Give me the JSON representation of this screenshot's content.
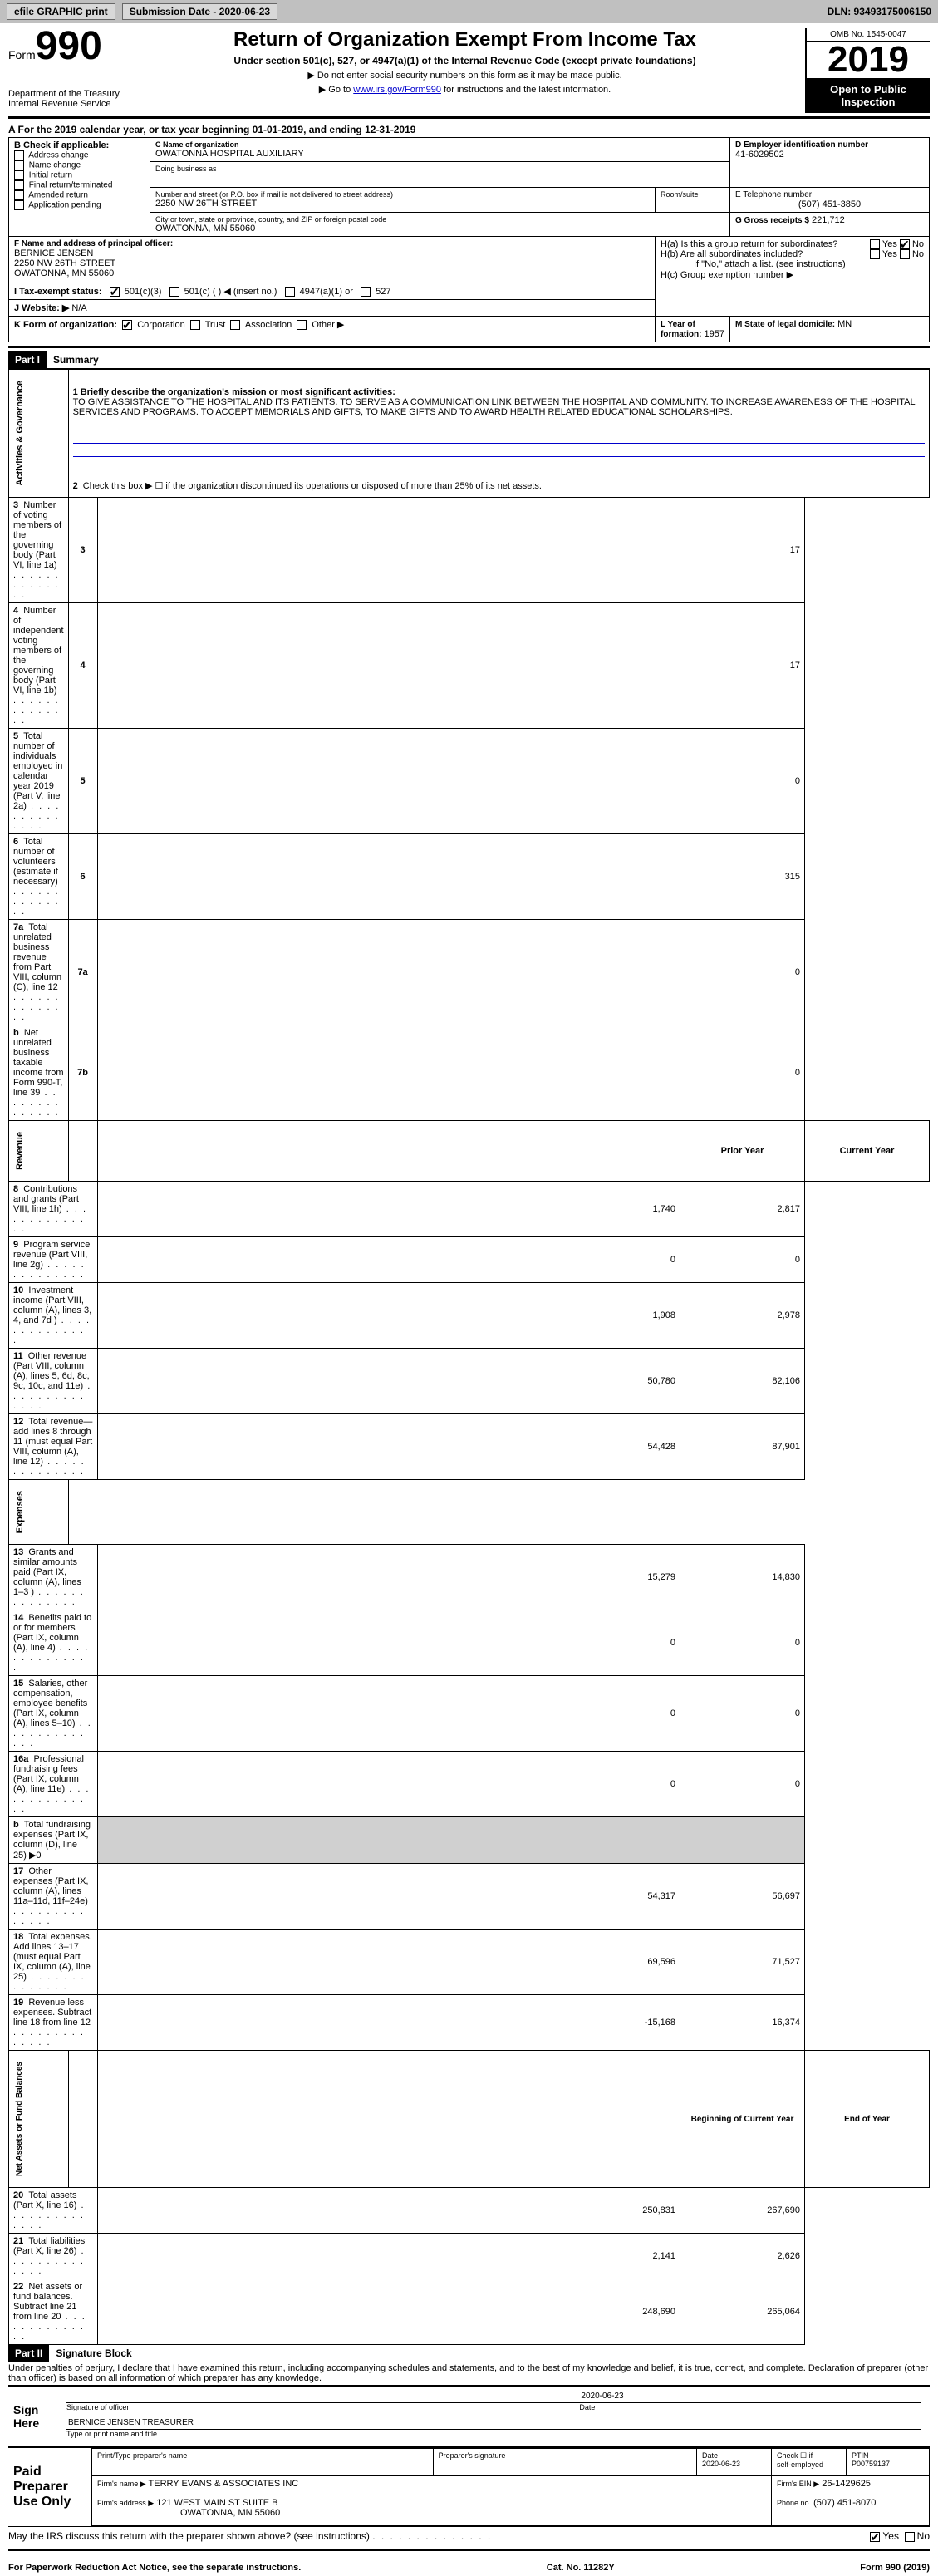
{
  "header": {
    "efile": "efile GRAPHIC print",
    "submission": "Submission Date - 2020-06-23",
    "dln": "DLN: 93493175006150"
  },
  "form": {
    "prefix": "Form",
    "number": "990",
    "dept": "Department of the Treasury",
    "irs": "Internal Revenue Service"
  },
  "title": {
    "main": "Return of Organization Exempt From Income Tax",
    "sub": "Under section 501(c), 527, or 4947(a)(1) of the Internal Revenue Code (except private foundations)",
    "note1": "▶ Do not enter social security numbers on this form as it may be made public.",
    "note2_prefix": "▶ Go to ",
    "note2_link": "www.irs.gov/Form990",
    "note2_suffix": " for instructions and the latest information."
  },
  "rightbox": {
    "omb": "OMB No. 1545-0047",
    "year": "2019",
    "inspect": "Open to Public Inspection"
  },
  "period": {
    "prefix": "A For the 2019 calendar year, or tax year beginning ",
    "start": "01-01-2019",
    "mid": ", and ending ",
    "end": "12-31-2019"
  },
  "boxB": {
    "label": "B Check if applicable:",
    "opts": [
      "Address change",
      "Name change",
      "Initial return",
      "Final return/terminated",
      "Amended return",
      "Application pending"
    ]
  },
  "boxC": {
    "label": "C Name of organization",
    "name": "OWATONNA HOSPITAL AUXILIARY",
    "dba": "Doing business as",
    "addr_label": "Number and street (or P.O. box if mail is not delivered to street address)",
    "addr": "2250 NW 26TH STREET",
    "room": "Room/suite",
    "city_label": "City or town, state or province, country, and ZIP or foreign postal code",
    "city": "OWATONNA, MN  55060"
  },
  "boxD": {
    "label": "D Employer identification number",
    "value": "41-6029502"
  },
  "boxE": {
    "label": "E Telephone number",
    "value": "(507) 451-3850"
  },
  "boxG": {
    "label": "G Gross receipts $",
    "value": "221,712"
  },
  "boxF": {
    "label": "F Name and address of principal officer:",
    "name": "BERNICE JENSEN",
    "addr": "2250 NW 26TH STREET",
    "city": "OWATONNA, MN  55060"
  },
  "boxH": {
    "a": "H(a)  Is this a group return for subordinates?",
    "b": "H(b)  Are all subordinates included?",
    "bnote": "If \"No,\" attach a list. (see instructions)",
    "c": "H(c)  Group exemption number ▶"
  },
  "boxI": {
    "label": "I  Tax-exempt status:",
    "opt1": "501(c)(3)",
    "opt2": "501(c) (  ) ◀ (insert no.)",
    "opt3": "4947(a)(1) or",
    "opt4": "527"
  },
  "boxJ": {
    "label": "J  Website: ▶",
    "value": "N/A"
  },
  "boxK": {
    "label": "K Form of organization:",
    "opts": [
      "Corporation",
      "Trust",
      "Association",
      "Other ▶"
    ]
  },
  "boxL": {
    "label": "L Year of formation:",
    "value": "1957"
  },
  "boxM": {
    "label": "M State of legal domicile:",
    "value": "MN"
  },
  "part1": {
    "label": "Part I",
    "title": "Summary"
  },
  "mission": {
    "label": "1   Briefly describe the organization's mission or most significant activities:",
    "text": "TO GIVE ASSISTANCE TO THE HOSPITAL AND ITS PATIENTS. TO SERVE AS A COMMUNICATION LINK BETWEEN THE HOSPITAL AND COMMUNITY. TO INCREASE AWARENESS OF THE HOSPITAL SERVICES AND PROGRAMS. TO ACCEPT MEMORIALS AND GIFTS, TO MAKE GIFTS AND TO AWARD HEALTH RELATED EDUCATIONAL SCHOLARSHIPS."
  },
  "line2": "Check this box ▶ ☐  if the organization discontinued its operations or disposed of more than 25% of its net assets.",
  "governance": [
    {
      "n": "3",
      "t": "Number of voting members of the governing body (Part VI, line 1a)",
      "ref": "3",
      "v": "17"
    },
    {
      "n": "4",
      "t": "Number of independent voting members of the governing body (Part VI, line 1b)",
      "ref": "4",
      "v": "17"
    },
    {
      "n": "5",
      "t": "Total number of individuals employed in calendar year 2019 (Part V, line 2a)",
      "ref": "5",
      "v": "0"
    },
    {
      "n": "6",
      "t": "Total number of volunteers (estimate if necessary)",
      "ref": "6",
      "v": "315"
    },
    {
      "n": "7a",
      "t": "Total unrelated business revenue from Part VIII, column (C), line 12",
      "ref": "7a",
      "v": "0"
    },
    {
      "n": "b",
      "t": "Net unrelated business taxable income from Form 990-T, line 39",
      "ref": "7b",
      "v": "0"
    }
  ],
  "revenue_header": {
    "a": "Prior Year",
    "b": "Current Year"
  },
  "revenue": [
    {
      "n": "8",
      "t": "Contributions and grants (Part VIII, line 1h)",
      "a": "1,740",
      "b": "2,817"
    },
    {
      "n": "9",
      "t": "Program service revenue (Part VIII, line 2g)",
      "a": "0",
      "b": "0"
    },
    {
      "n": "10",
      "t": "Investment income (Part VIII, column (A), lines 3, 4, and 7d )",
      "a": "1,908",
      "b": "2,978"
    },
    {
      "n": "11",
      "t": "Other revenue (Part VIII, column (A), lines 5, 6d, 8c, 9c, 10c, and 11e)",
      "a": "50,780",
      "b": "82,106"
    },
    {
      "n": "12",
      "t": "Total revenue—add lines 8 through 11 (must equal Part VIII, column (A), line 12)",
      "a": "54,428",
      "b": "87,901"
    }
  ],
  "expenses": [
    {
      "n": "13",
      "t": "Grants and similar amounts paid (Part IX, column (A), lines 1–3 )",
      "a": "15,279",
      "b": "14,830"
    },
    {
      "n": "14",
      "t": "Benefits paid to or for members (Part IX, column (A), line 4)",
      "a": "0",
      "b": "0"
    },
    {
      "n": "15",
      "t": "Salaries, other compensation, employee benefits (Part IX, column (A), lines 5–10)",
      "a": "0",
      "b": "0"
    },
    {
      "n": "16a",
      "t": "Professional fundraising fees (Part IX, column (A), line 11e)",
      "a": "0",
      "b": "0"
    },
    {
      "n": "b",
      "t": "Total fundraising expenses (Part IX, column (D), line 25) ▶0",
      "a": "",
      "b": "",
      "shade": true
    },
    {
      "n": "17",
      "t": "Other expenses (Part IX, column (A), lines 11a–11d, 11f–24e)",
      "a": "54,317",
      "b": "56,697"
    },
    {
      "n": "18",
      "t": "Total expenses. Add lines 13–17 (must equal Part IX, column (A), line 25)",
      "a": "69,596",
      "b": "71,527"
    },
    {
      "n": "19",
      "t": "Revenue less expenses. Subtract line 18 from line 12",
      "a": "-15,168",
      "b": "16,374"
    }
  ],
  "assets_header": {
    "a": "Beginning of Current Year",
    "b": "End of Year"
  },
  "assets": [
    {
      "n": "20",
      "t": "Total assets (Part X, line 16)",
      "a": "250,831",
      "b": "267,690"
    },
    {
      "n": "21",
      "t": "Total liabilities (Part X, line 26)",
      "a": "2,141",
      "b": "2,626"
    },
    {
      "n": "22",
      "t": "Net assets or fund balances. Subtract line 21 from line 20",
      "a": "248,690",
      "b": "265,064"
    }
  ],
  "vlabels": {
    "gov": "Activities & Governance",
    "rev": "Revenue",
    "exp": "Expenses",
    "net": "Net Assets or Fund Balances"
  },
  "part2": {
    "label": "Part II",
    "title": "Signature Block"
  },
  "perjury": "Under penalties of perjury, I declare that I have examined this return, including accompanying schedules and statements, and to the best of my knowledge and belief, it is true, correct, and complete. Declaration of preparer (other than officer) is based on all information of which preparer has any knowledge.",
  "sign": {
    "here": "Sign Here",
    "sig_officer": "Signature of officer",
    "date_label": "Date",
    "date": "2020-06-23",
    "name": "BERNICE JENSEN  TREASURER",
    "name_label": "Type or print name and title"
  },
  "paid": {
    "label": "Paid Preparer Use Only",
    "h1": "Print/Type preparer's name",
    "h2": "Preparer's signature",
    "h3": "Date",
    "date": "2020-06-23",
    "h4_a": "Check ☐ if",
    "h4_b": "self-employed",
    "h5": "PTIN",
    "ptin": "P00759137",
    "firm_label": "Firm's name   ▶",
    "firm": "TERRY EVANS & ASSOCIATES INC",
    "ein_label": "Firm's EIN ▶",
    "ein": "26-1429625",
    "addr_label": "Firm's address ▶",
    "addr": "121 WEST MAIN ST SUITE B",
    "addr2": "OWATONNA, MN  55060",
    "phone_label": "Phone no.",
    "phone": "(507) 451-8070"
  },
  "discuss": "May the IRS discuss this return with the preparer shown above? (see instructions)",
  "footer": {
    "left": "For Paperwork Reduction Act Notice, see the separate instructions.",
    "mid": "Cat. No. 11282Y",
    "right": "Form 990 (2019)"
  },
  "yn": {
    "yes": "Yes",
    "no": "No"
  }
}
